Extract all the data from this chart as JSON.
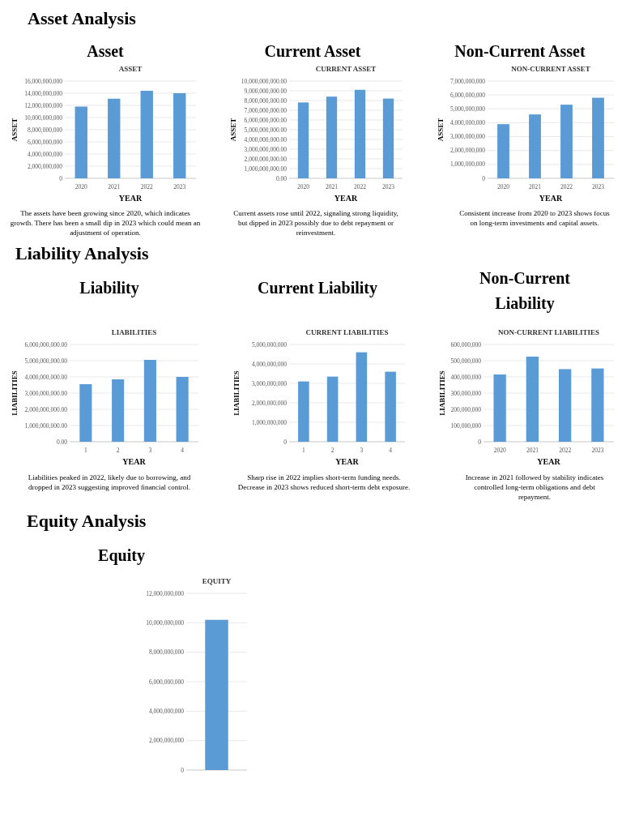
{
  "chart_data": [
    {
      "type": "bar",
      "title": "ASSET",
      "xlabel": "YEAR",
      "ylabel": "ASSET",
      "categories": [
        "2020",
        "2021",
        "2022",
        "2023"
      ],
      "values": [
        11800000000,
        13100000000,
        14400000000,
        14000000000
      ],
      "color": "#5b9bd5",
      "ylim": [
        0,
        16000000000
      ],
      "yticks": [
        {
          "value": 0,
          "label": "0"
        },
        {
          "value": 2000000000,
          "label": "2,000,000,000"
        },
        {
          "value": 4000000000,
          "label": "4,000,000,000"
        },
        {
          "value": 6000000000,
          "label": "6,000,000,000"
        },
        {
          "value": 8000000000,
          "label": "8,000,000,000"
        },
        {
          "value": 10000000000,
          "label": "10,000,000,000"
        },
        {
          "value": 12000000000,
          "label": "12,000,000,000"
        },
        {
          "value": 14000000000,
          "label": "14,000,000,000"
        },
        {
          "value": 16000000000,
          "label": "16,000,000,000"
        }
      ],
      "grid": "y",
      "annotations": [
        "Asset Analysis",
        "Asset",
        "The assets have been growing since 2020, which indicates growth. There has been a small dip in 2023 which could mean an adjustment of operation."
      ]
    },
    {
      "type": "bar",
      "title": "CURRENT ASSET",
      "xlabel": "YEAR",
      "ylabel": "ASSET",
      "categories": [
        "2020",
        "2021",
        "2022",
        "2023"
      ],
      "values": [
        7800000000,
        8400000000,
        9100000000,
        8200000000
      ],
      "color": "#5b9bd5",
      "ylim": [
        0,
        10000000000
      ],
      "yticks": [
        {
          "value": 0,
          "label": "0.00"
        },
        {
          "value": 1000000000,
          "label": "1,000,000,000.00"
        },
        {
          "value": 2000000000,
          "label": "2,000,000,000.00"
        },
        {
          "value": 3000000000,
          "label": "3,000,000,000.00"
        },
        {
          "value": 4000000000,
          "label": "4,000,000,000.00"
        },
        {
          "value": 5000000000,
          "label": "5,000,000,000.00"
        },
        {
          "value": 6000000000,
          "label": "6,000,000,000.00"
        },
        {
          "value": 7000000000,
          "label": "7,000,000,000.00"
        },
        {
          "value": 8000000000,
          "label": "8,000,000,000.00"
        },
        {
          "value": 9000000000,
          "label": "9,000,000,000.00"
        },
        {
          "value": 10000000000,
          "label": "10,000,000,000.00"
        }
      ],
      "grid": "y",
      "annotations": [
        "Current Asset",
        "Current assets rose until 2022, signaling strong liquidity, but dipped in 2023 possibly due to debt repayment or reinvestment."
      ]
    },
    {
      "type": "bar",
      "title": "NON-CURRENT ASSET",
      "xlabel": "YEAR",
      "ylabel": "ASSET",
      "categories": [
        "2020",
        "2021",
        "2022",
        "2023"
      ],
      "values": [
        3900000000,
        4600000000,
        5300000000,
        5800000000
      ],
      "color": "#5b9bd5",
      "ylim": [
        0,
        7000000000
      ],
      "yticks": [
        {
          "value": 0,
          "label": "0"
        },
        {
          "value": 1000000000,
          "label": "1,000,000,000"
        },
        {
          "value": 2000000000,
          "label": "2,000,000,000"
        },
        {
          "value": 3000000000,
          "label": "3,000,000,000"
        },
        {
          "value": 4000000000,
          "label": "4,000,000,000"
        },
        {
          "value": 5000000000,
          "label": "5,000,000,000"
        },
        {
          "value": 6000000000,
          "label": "6,000,000,000"
        },
        {
          "value": 7000000000,
          "label": "7,000,000,000"
        }
      ],
      "grid": "y",
      "annotations": [
        "Non-Current Asset",
        "Consistent increase from 2020 to 2023 shows focus on long-term investments and capital assets."
      ]
    },
    {
      "type": "bar",
      "title": "LIABILITIES",
      "xlabel": "YEAR",
      "ylabel": "LIABILITIES",
      "categories": [
        "1",
        "2",
        "3",
        "4"
      ],
      "values": [
        3550000000,
        3850000000,
        5050000000,
        4000000000
      ],
      "color": "#5b9bd5",
      "ylim": [
        0,
        6000000000
      ],
      "yticks": [
        {
          "value": 0,
          "label": "0.00"
        },
        {
          "value": 1000000000,
          "label": "1,000,000,000.00"
        },
        {
          "value": 2000000000,
          "label": "2,000,000,000.00"
        },
        {
          "value": 3000000000,
          "label": "3,000,000,000.00"
        },
        {
          "value": 4000000000,
          "label": "4,000,000,000.00"
        },
        {
          "value": 5000000000,
          "label": "5,000,000,000.00"
        },
        {
          "value": 6000000000,
          "label": "6,000,000,000.00"
        }
      ],
      "grid": "y",
      "annotations": [
        "Liability Analysis",
        "Liability",
        "Liabilities peaked in 2022, likely due to borrowing, and dropped in 2023 suggesting improved financial control."
      ]
    },
    {
      "type": "bar",
      "title": "CURRENT LIABILITIES",
      "xlabel": "YEAR",
      "ylabel": "LIABILITIES",
      "categories": [
        "1",
        "2",
        "3",
        "4"
      ],
      "values": [
        3100000000,
        3350000000,
        4600000000,
        3600000000
      ],
      "color": "#5b9bd5",
      "ylim": [
        0,
        5000000000
      ],
      "yticks": [
        {
          "value": 0,
          "label": "0"
        },
        {
          "value": 1000000000,
          "label": "1,000,000,000"
        },
        {
          "value": 2000000000,
          "label": "2,000,000,000"
        },
        {
          "value": 3000000000,
          "label": "3,000,000,000"
        },
        {
          "value": 4000000000,
          "label": "4,000,000,000"
        },
        {
          "value": 5000000000,
          "label": "5,000,000,000"
        }
      ],
      "grid": "y",
      "annotations": [
        "Current Liability",
        "Sharp rise in 2022 implies short-term funding needs. Decrease in 2023 shows reduced short-term debt exposure."
      ]
    },
    {
      "type": "bar",
      "title": "NON-CURRENT LIABILITIES",
      "xlabel": "YEAR",
      "ylabel": "LIABILITIES",
      "categories": [
        "2020",
        "2021",
        "2022",
        "2023"
      ],
      "values": [
        415000000,
        525000000,
        448000000,
        452000000
      ],
      "color": "#5b9bd5",
      "ylim": [
        0,
        600000000
      ],
      "yticks": [
        {
          "value": 0,
          "label": "0"
        },
        {
          "value": 100000000,
          "label": "100,000,000"
        },
        {
          "value": 200000000,
          "label": "200,000,000"
        },
        {
          "value": 300000000,
          "label": "300,000,000"
        },
        {
          "value": 400000000,
          "label": "400,000,000"
        },
        {
          "value": 500000000,
          "label": "500,000,000"
        },
        {
          "value": 600000000,
          "label": "600,000,000"
        }
      ],
      "grid": "y",
      "annotations": [
        "Non-Current Liability",
        "Increase in 2021 followed by stability indicates controlled long-term obligations and debt repayment."
      ]
    },
    {
      "type": "bar",
      "title": "EQUITY",
      "categories": [
        null
      ],
      "values": [
        10200000000
      ],
      "color": "#5b9bd5",
      "ylim": [
        0,
        12000000000
      ],
      "yticks": [
        {
          "value": 0,
          "label": "0"
        },
        {
          "value": 2000000000,
          "label": "2,000,000,000"
        },
        {
          "value": 4000000000,
          "label": "4,000,000,000"
        },
        {
          "value": 6000000000,
          "label": "6,000,000,000"
        },
        {
          "value": 8000000000,
          "label": "8,000,000,000"
        },
        {
          "value": 10000000000,
          "label": "10,000,000,000"
        },
        {
          "value": 12000000000,
          "label": "12,000,000,000"
        }
      ],
      "grid": "y",
      "annotations": [
        "Equity Analysis",
        "Equity"
      ]
    }
  ]
}
